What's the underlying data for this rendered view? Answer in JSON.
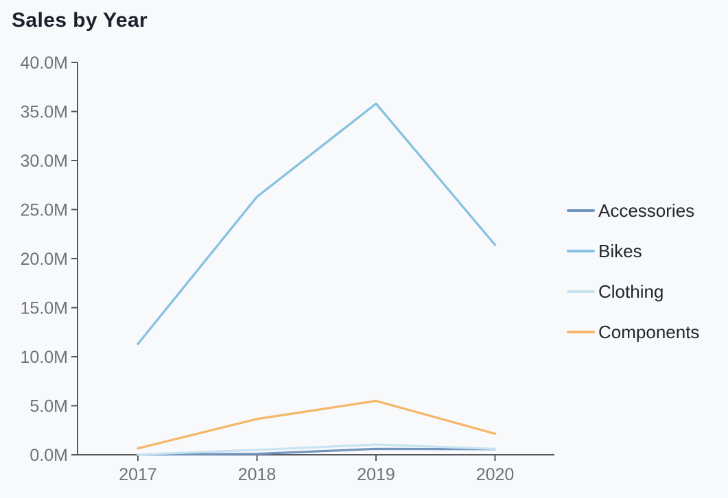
{
  "title": "Sales by Year",
  "colors": {
    "background": "#f8f9fb",
    "axis": "#54585e",
    "tick_label": "#6e7177",
    "title": "#1c202a",
    "legend_label": "#22262d"
  },
  "chart_data": {
    "type": "line",
    "title": "Sales by Year",
    "xlabel": "",
    "ylabel": "",
    "value_unit": "M",
    "categories": [
      "2017",
      "2018",
      "2019",
      "2020"
    ],
    "series": [
      {
        "name": "Accessories",
        "color": "#7095be",
        "values": [
          0.02,
          0.1,
          0.6,
          0.57
        ]
      },
      {
        "name": "Bikes",
        "color": "#85c2e0",
        "values": [
          11.3,
          26.3,
          35.8,
          21.4
        ]
      },
      {
        "name": "Clothing",
        "color": "#c8e4f0",
        "values": [
          0.03,
          0.5,
          1.05,
          0.6
        ]
      },
      {
        "name": "Components",
        "color": "#f5b669",
        "values": [
          0.65,
          3.65,
          5.5,
          2.15
        ]
      }
    ],
    "ylim": [
      0,
      40
    ],
    "ytick_step": 5,
    "ytick_labels": [
      "0.0M",
      "5.0M",
      "10.0M",
      "15.0M",
      "20.0M",
      "25.0M",
      "30.0M",
      "35.0M",
      "40.0M"
    ],
    "grid": false,
    "legend_position": "right"
  }
}
